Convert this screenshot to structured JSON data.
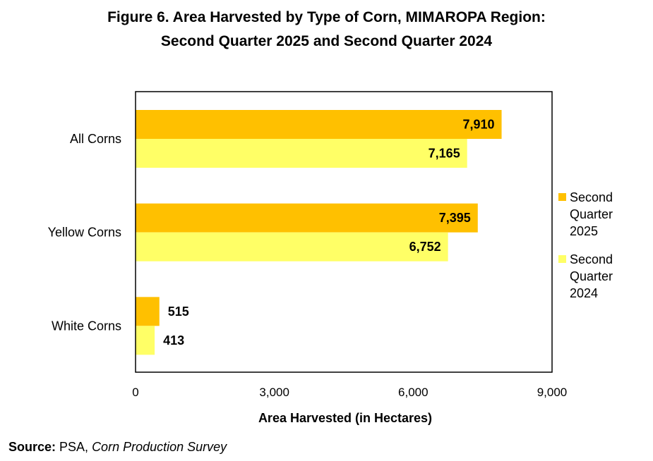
{
  "title_line1": "Figure 6. Area Harvested by Type of Corn, MIMAROPA Region:",
  "title_line2": "Second Quarter 2025 and Second Quarter 2024",
  "source": {
    "label": "Source:",
    "org": " PSA, ",
    "survey": "Corn Production Survey"
  },
  "colors": {
    "q2_2025": "#FFC000",
    "q2_2024": "#FFFF66",
    "frame": "#000000"
  },
  "chart_data": {
    "type": "bar",
    "orientation": "horizontal",
    "categories": [
      "All Corns",
      "Yellow Corns",
      "White Corns"
    ],
    "series": [
      {
        "name": "Second Quarter 2025",
        "legend_lines": [
          "Second",
          "Quarter",
          "2025"
        ],
        "values": [
          7910,
          7395,
          515
        ],
        "labels": [
          "7,910",
          "7,395",
          "515"
        ]
      },
      {
        "name": "Second Quarter 2024",
        "legend_lines": [
          "Second",
          "Quarter",
          "2024"
        ],
        "values": [
          7165,
          6752,
          413
        ],
        "labels": [
          "7,165",
          "6,752",
          "413"
        ]
      }
    ],
    "xlim": [
      0,
      9000
    ],
    "xticks": [
      0,
      3000,
      6000,
      9000
    ],
    "xtick_labels": [
      "0",
      "3,000",
      "6,000",
      "9,000"
    ],
    "xlabel": "Area Harvested (in Hectares)",
    "ylabel": "",
    "grid": false,
    "legend_position": "right"
  }
}
